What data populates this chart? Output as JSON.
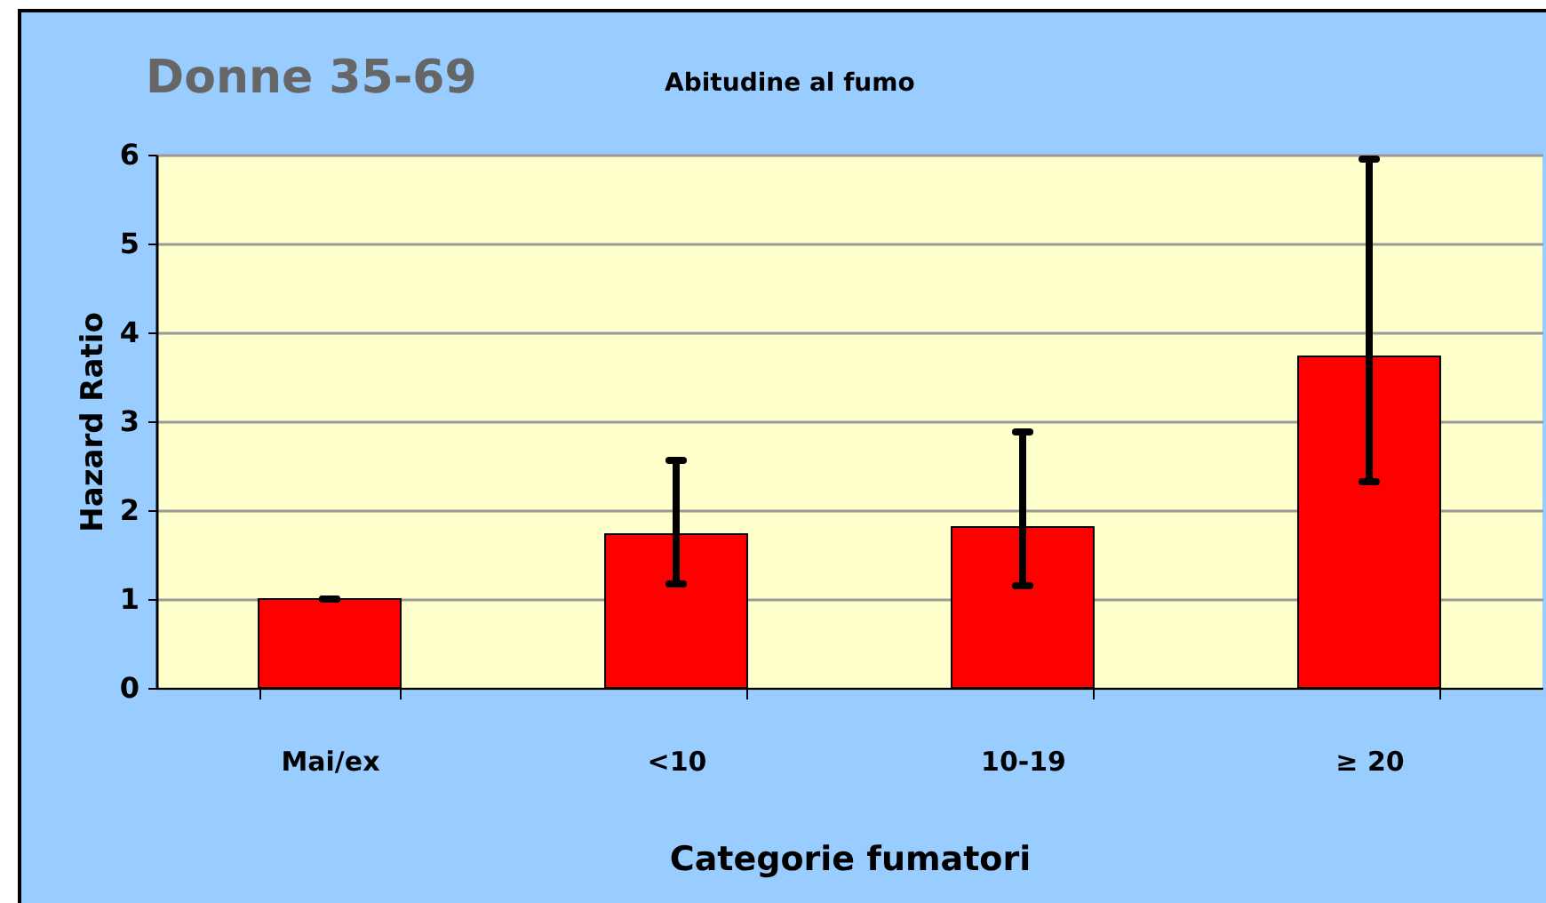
{
  "chart_data": {
    "type": "bar",
    "title": "Donne 35-69",
    "subtitle": "Abitudine al fumo",
    "xlabel": "Categorie fumatori",
    "ylabel": "Hazard Ratio",
    "categories": [
      "Mai/ex",
      "<10",
      "10-19",
      "≥ 20"
    ],
    "values": [
      1.0,
      1.73,
      1.81,
      3.73
    ],
    "errors": [
      [
        1.0,
        1.0
      ],
      [
        1.17,
        2.56
      ],
      [
        1.15,
        2.88
      ],
      [
        2.32,
        5.95
      ]
    ],
    "color": "#ff0000",
    "ylim": [
      0,
      6
    ],
    "yticks": [
      0,
      1,
      2,
      3,
      4,
      5,
      6
    ],
    "grid": "y"
  }
}
